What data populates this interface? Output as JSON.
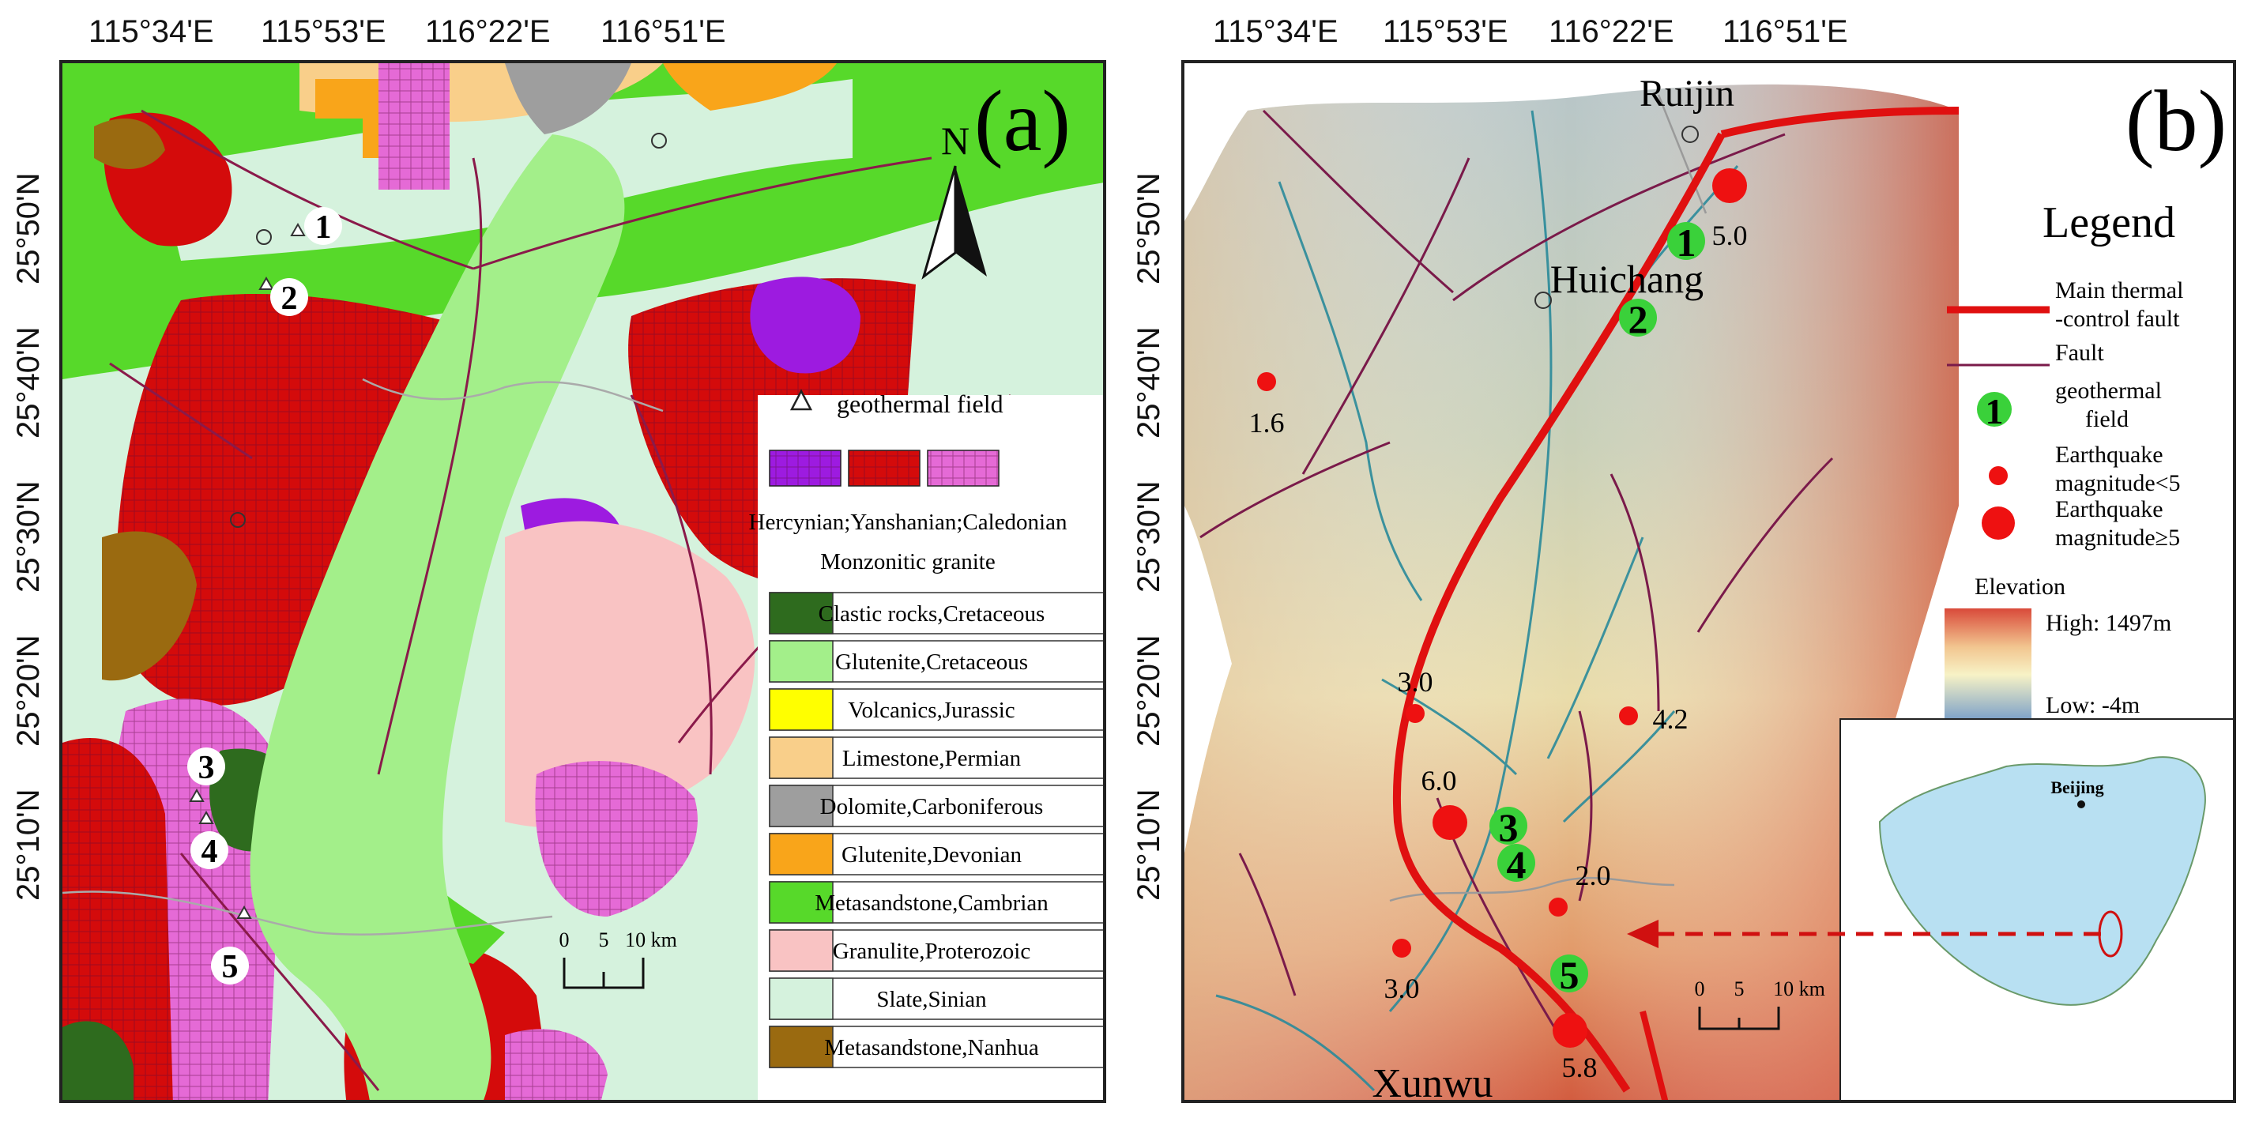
{
  "top_longitudes": [
    "115°34'E",
    "115°53'E",
    "116°22'E",
    "116°51'E"
  ],
  "left_latitudes": [
    "25°50'N",
    "25°40'N",
    "25°30'N",
    "25°20'N",
    "25°10'N"
  ],
  "panel_a": {
    "label": "(a)",
    "north": "N",
    "points": [
      {
        "id": "1",
        "label": "1"
      },
      {
        "id": "2",
        "label": "2"
      },
      {
        "id": "3",
        "label": "3"
      },
      {
        "id": "4",
        "label": "4"
      },
      {
        "id": "5",
        "label": "5"
      }
    ],
    "legend": {
      "geothermal_field": "geothermal field",
      "granite_ages": "Hercynian;Yanshanian;Caledonian",
      "granite_type": "Monzonitic granite",
      "units": [
        {
          "name": "Clastic rocks,Cretaceous",
          "color": "#2e6b1e"
        },
        {
          "name": "Glutenite,Cretaceous",
          "color": "#a3ef8a"
        },
        {
          "name": "Volcanics,Jurassic",
          "color": "#ffff00"
        },
        {
          "name": "Limestone,Permian",
          "color": "#f9cf8a"
        },
        {
          "name": "Dolomite,Carboniferous",
          "color": "#9e9e9e"
        },
        {
          "name": "Glutenite,Devonian",
          "color": "#f9a51a"
        },
        {
          "name": "Metasandstone,Cambrian",
          "color": "#57d92a"
        },
        {
          "name": "Granulite,Proterozoic",
          "color": "#f9c3c3"
        },
        {
          "name": "Slate,Sinian",
          "color": "#d5f2dd"
        },
        {
          "name": "Metasandstone,Nanhua",
          "color": "#9a6a10"
        }
      ],
      "granite_colors": [
        "#9d1be0",
        "#d40b0b",
        "#e56ad6"
      ]
    },
    "scale": {
      "zero": "0",
      "mid": "5",
      "end": "10 km"
    }
  },
  "panel_b": {
    "label": "(b)",
    "cities": {
      "ruijin": "Ruijin",
      "huichang": "Huichang",
      "xunwu": "Xunwu"
    },
    "earthquakes": [
      {
        "mag": "5.0"
      },
      {
        "mag": "1.6"
      },
      {
        "mag": "3.0"
      },
      {
        "mag": "4.2"
      },
      {
        "mag": "6.0"
      },
      {
        "mag": "2.0"
      },
      {
        "mag": "3.0"
      },
      {
        "mag": "5.8"
      }
    ],
    "fields": [
      "1",
      "2",
      "3",
      "4",
      "5"
    ],
    "legend": {
      "title": "Legend",
      "main_fault_line1": "Main thermal",
      "main_fault_line2": "-control fault",
      "fault": "Fault",
      "geo_line1": "geothermal",
      "geo_line2": "field",
      "geo_symbol": "1",
      "eq_small_line1": "Earthquake",
      "eq_small_line2": "magnitude<5",
      "eq_big_line1": "Earthquake",
      "eq_big_line2": "magnitude≥5",
      "elevation": "Elevation",
      "high": "High:  1497m",
      "low": "Low:  -4m"
    },
    "inset_city": "Beijing",
    "scale": {
      "zero": "0",
      "mid": "5",
      "end": "10 km"
    }
  },
  "colors": {
    "main_fault": "#e01010",
    "fault": "#7a1a4a",
    "river": "#2a8a9a",
    "field_green": "#3ad13a",
    "quake_red": "#ee1111"
  }
}
